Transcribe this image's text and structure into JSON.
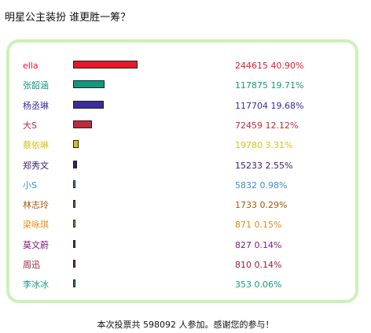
{
  "title": "明星公主装扮 谁更胜一筹？",
  "footer": "本次投票共 598092 人参加。感谢您的参与！",
  "chart_data": {
    "type": "bar",
    "orientation": "horizontal",
    "total_votes": 598092,
    "rows": [
      {
        "name": "ella",
        "votes": 244615,
        "percent": "40.90%",
        "color": "#e8172b",
        "label": "244615 40.90%"
      },
      {
        "name": "张韶涵",
        "votes": 117875,
        "percent": "19.71%",
        "color": "#0f9a80",
        "label": "117875 19.71%"
      },
      {
        "name": "杨丞琳",
        "votes": 117704,
        "percent": "19.68%",
        "color": "#3b2b9c",
        "label": "117704 19.68%"
      },
      {
        "name": "大S",
        "votes": 72459,
        "percent": "12.12%",
        "color": "#c4283d",
        "label": "72459 12.12%"
      },
      {
        "name": "蔡依琳",
        "votes": 19780,
        "percent": "3.31%",
        "color": "#d8c21a",
        "label": "19780 3.31%"
      },
      {
        "name": "郑秀文",
        "votes": 15233,
        "percent": "2.55%",
        "color": "#3c1a72",
        "label": "15233 2.55%"
      },
      {
        "name": "小S",
        "votes": 5832,
        "percent": "0.98%",
        "color": "#3a8fd6",
        "label": "5832 0.98%"
      },
      {
        "name": "林志玲",
        "votes": 1733,
        "percent": "0.29%",
        "color": "#a05a0a",
        "label": "1733 0.29%"
      },
      {
        "name": "梁咏琪",
        "votes": 871,
        "percent": "0.15%",
        "color": "#e58a14",
        "label": "871 0.15%"
      },
      {
        "name": "莫文蔚",
        "votes": 827,
        "percent": "0.14%",
        "color": "#7a1a7a",
        "label": "827 0.14%"
      },
      {
        "name": "周迅",
        "votes": 810,
        "percent": "0.14%",
        "color": "#9c1a3c",
        "label": "810 0.14%"
      },
      {
        "name": "李冰冰",
        "votes": 353,
        "percent": "0.06%",
        "color": "#159a80",
        "label": "353 0.06%"
      }
    ]
  }
}
